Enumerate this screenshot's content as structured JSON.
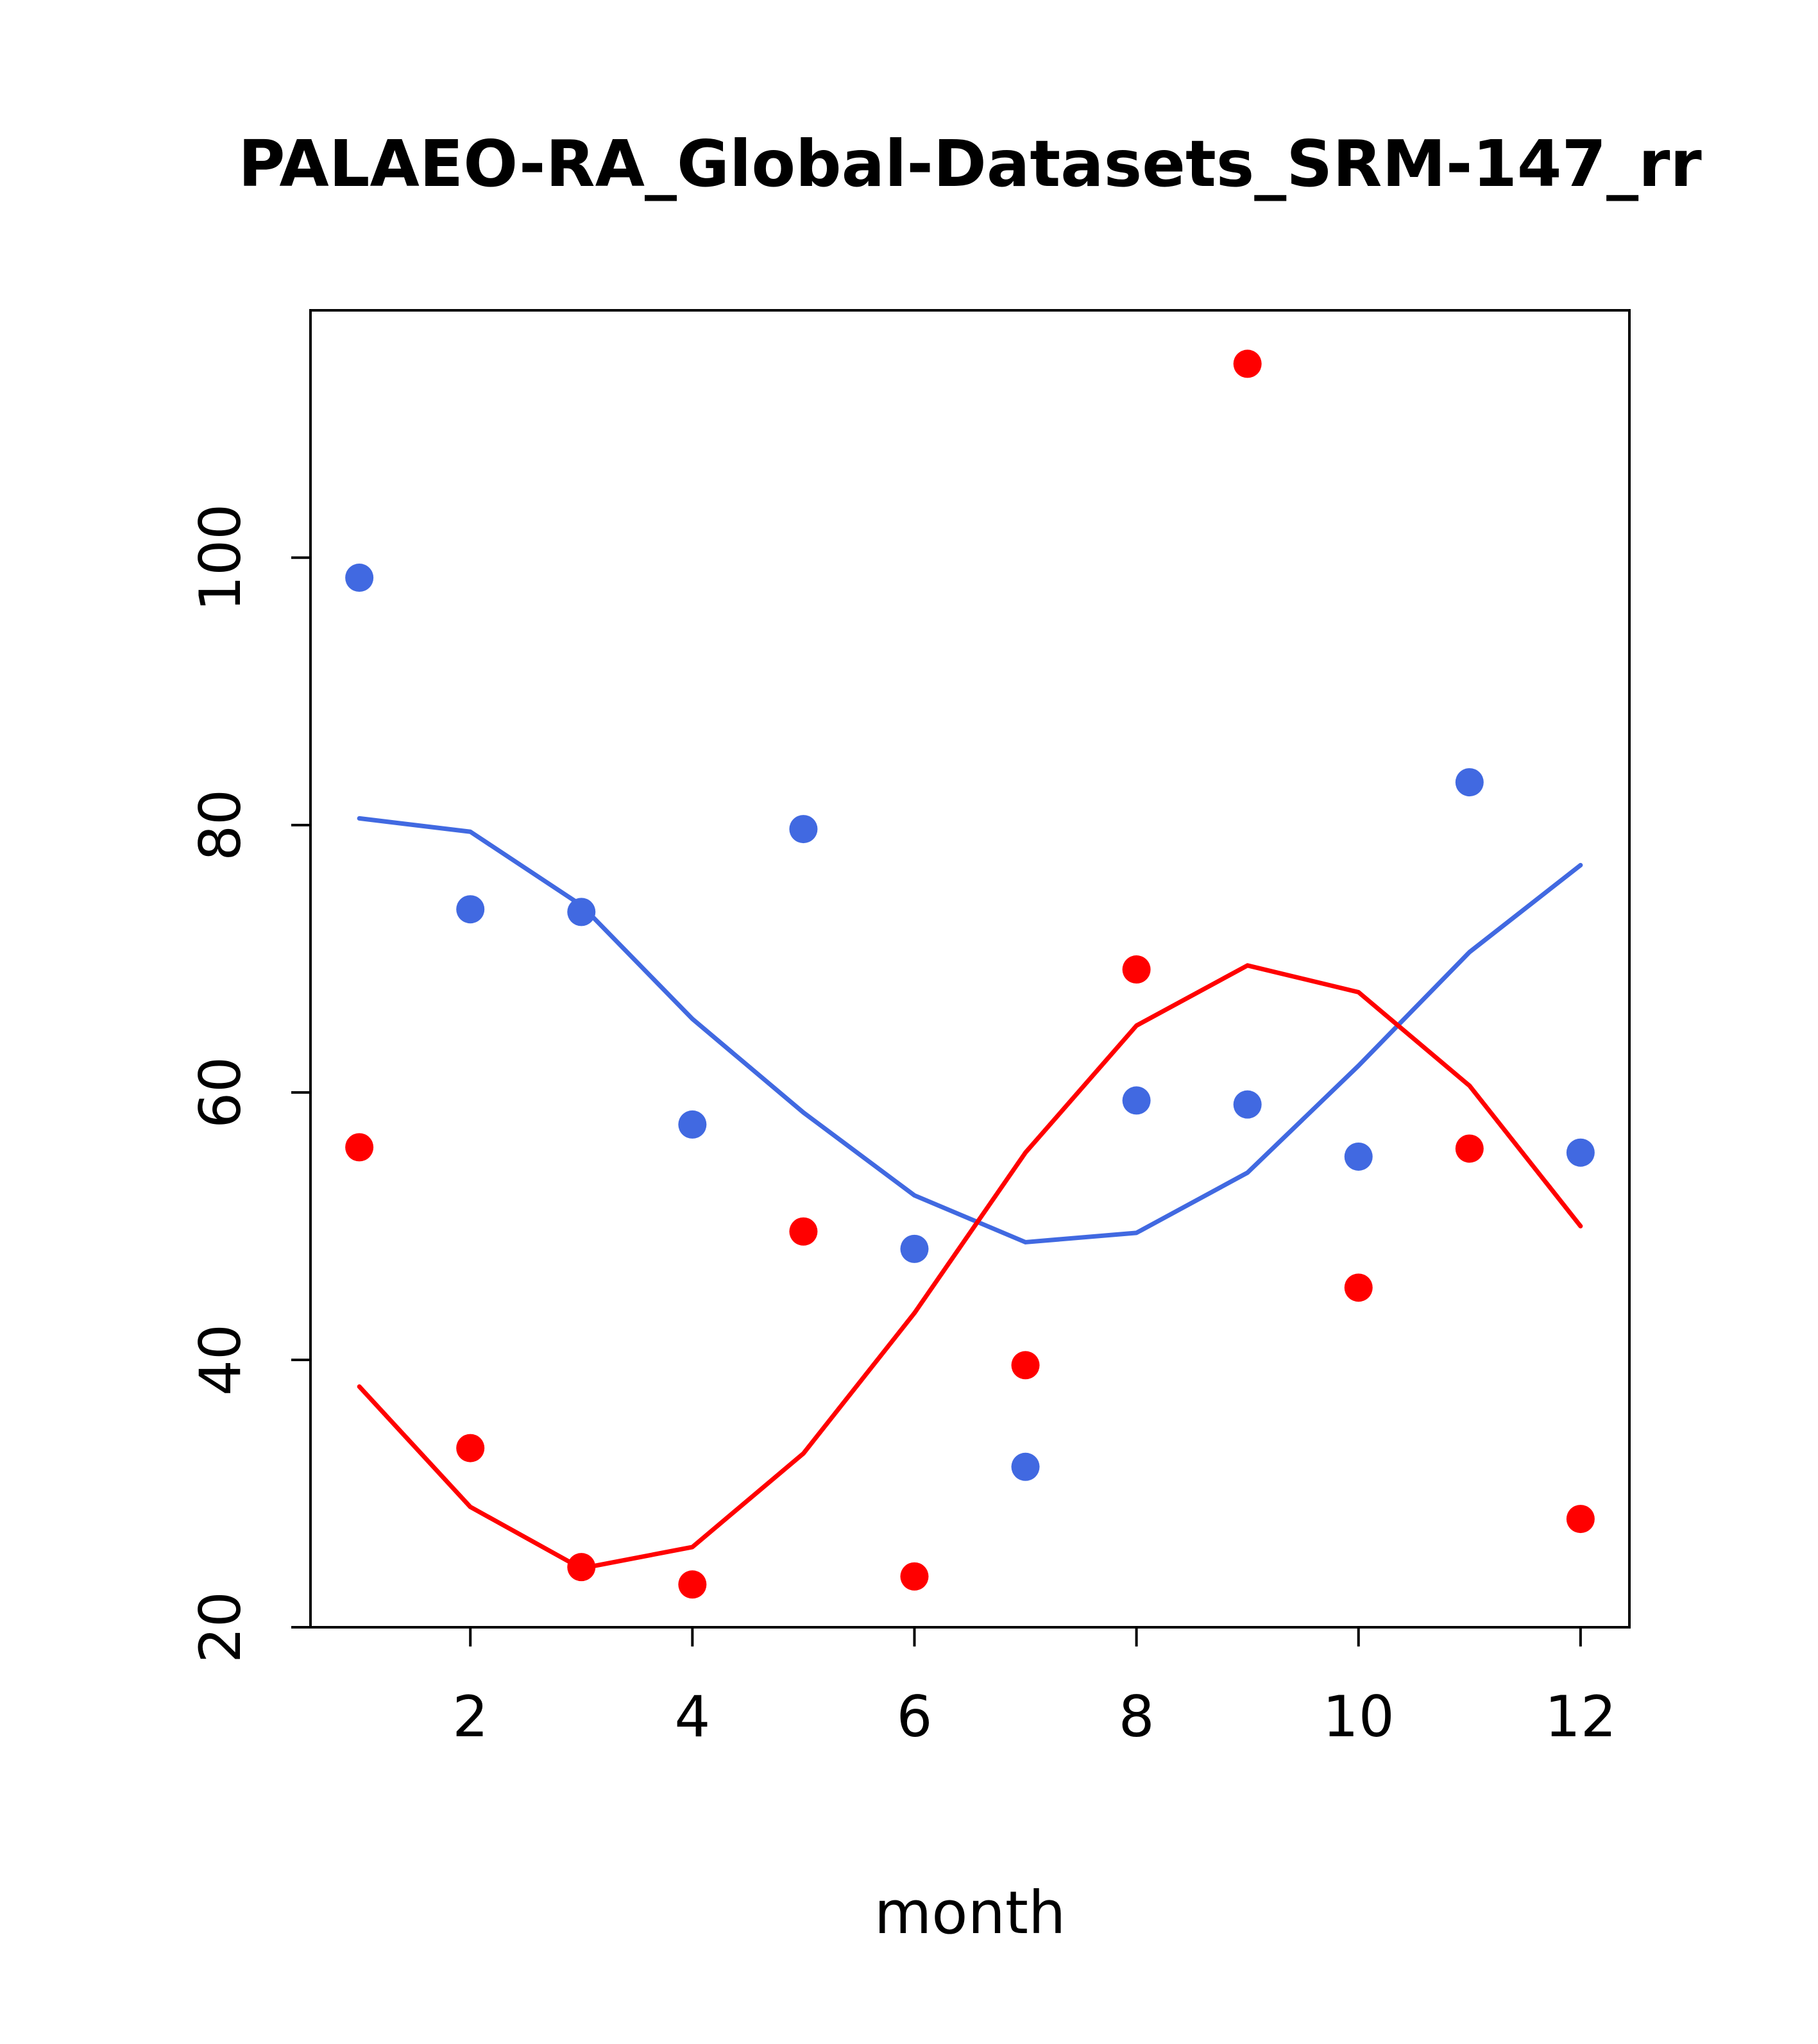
{
  "title": "PALAEO-RA_Global-Datasets_SRM-147_rr",
  "chart_data": {
    "type": "scatter",
    "title": "PALAEO-RA_Global-Datasets_SRM-147_rr",
    "xlabel": "month",
    "ylabel": "",
    "xlim": [
      0.56,
      12.44
    ],
    "ylim": [
      20,
      118.5
    ],
    "x_ticks": [
      2,
      4,
      6,
      8,
      10,
      12
    ],
    "y_ticks": [
      20,
      40,
      60,
      80,
      100
    ],
    "grid": false,
    "legend": null,
    "colors": {
      "blue": "#4169E1",
      "red": "#FF0000"
    },
    "x": [
      1,
      2,
      3,
      4,
      5,
      6,
      7,
      8,
      9,
      10,
      11,
      12
    ],
    "series": [
      {
        "name": "blue-points",
        "type": "points",
        "color": "#4169E1",
        "values": [
          98.5,
          73.7,
          73.5,
          57.6,
          79.7,
          48.3,
          32.0,
          59.4,
          59.1,
          55.2,
          83.2,
          55.5
        ]
      },
      {
        "name": "red-points",
        "type": "points",
        "color": "#FF0000",
        "values": [
          55.9,
          33.4,
          24.5,
          23.2,
          49.6,
          23.8,
          39.6,
          69.2,
          114.5,
          45.4,
          55.8,
          28.1
        ]
      },
      {
        "name": "blue-smooth-line",
        "type": "line",
        "color": "#4169E1",
        "values": [
          80.5,
          79.5,
          74.0,
          65.5,
          58.5,
          52.3,
          48.8,
          49.5,
          54.0,
          62.0,
          70.5,
          77.0
        ]
      },
      {
        "name": "red-smooth-line",
        "type": "line",
        "color": "#FF0000",
        "values": [
          38.0,
          29.0,
          24.4,
          26.0,
          33.0,
          43.5,
          55.5,
          65.0,
          69.5,
          67.5,
          60.5,
          50.0
        ]
      }
    ]
  }
}
